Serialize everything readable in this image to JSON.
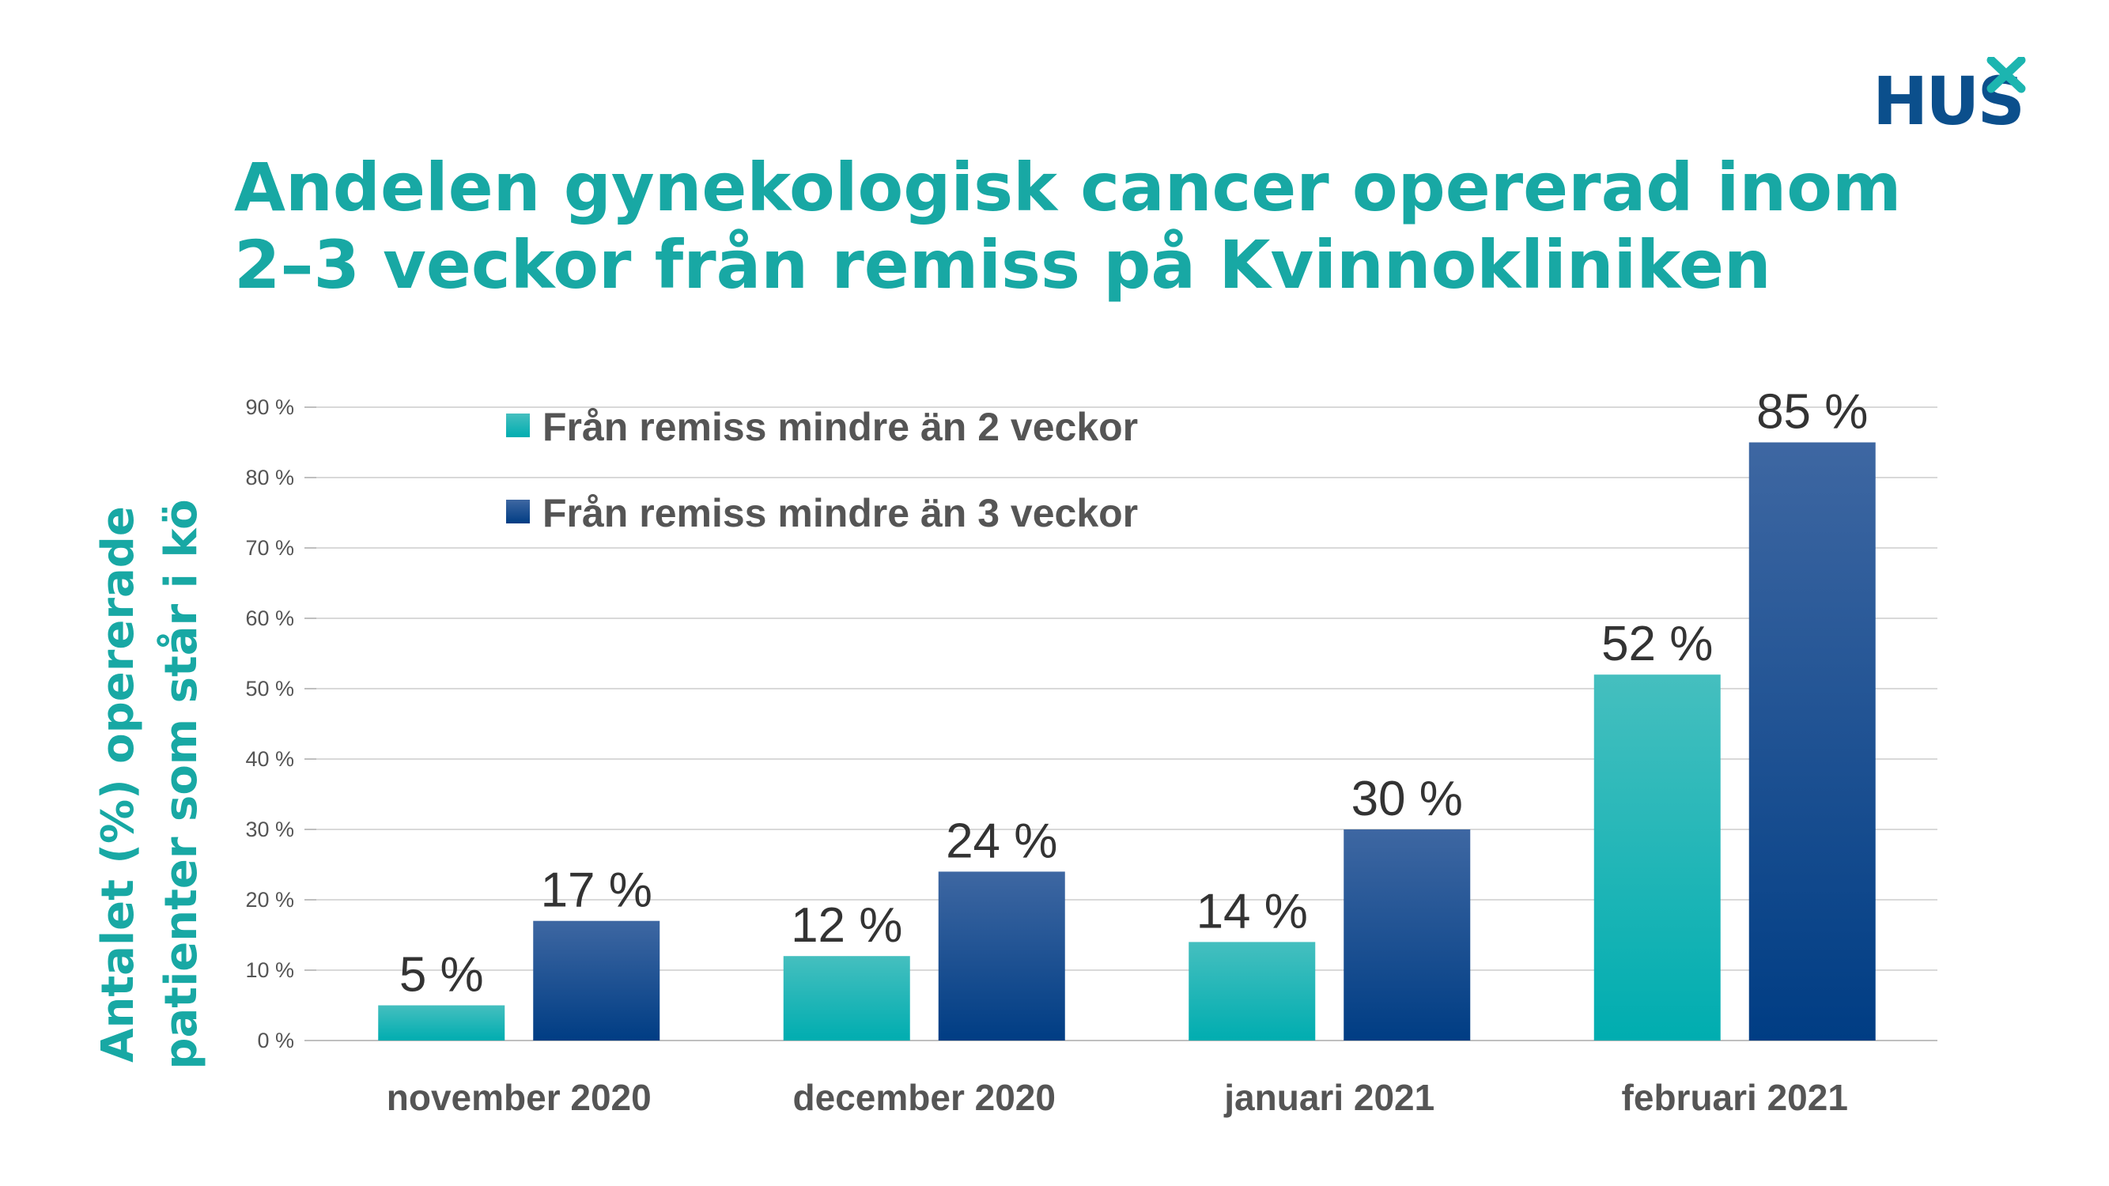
{
  "brand": {
    "logo_text": "HUS",
    "colors": {
      "title": "#18a8a4",
      "logo": "#0b4f8c",
      "cross": "#1cb5b0",
      "axis_text": "#555555",
      "grid": "#d9d9d9"
    }
  },
  "chart_data": {
    "type": "bar",
    "title": [
      "Andelen gynekologisk cancer opererad inom",
      "2–3 veckor från remiss på Kvinnokliniken"
    ],
    "ylabel": [
      "Antalet (%) opererade",
      "patienter som står i kö"
    ],
    "xlabel": "",
    "categories": [
      "november 2020",
      "december 2020",
      "januari 2021",
      "februari 2021"
    ],
    "series": [
      {
        "name": "Från remiss mindre än 2 veckor",
        "values": [
          5,
          12,
          14,
          52
        ],
        "color": "#18b3b0"
      },
      {
        "name": "Från remiss mindre än 3 veckor",
        "values": [
          17,
          24,
          30,
          85
        ],
        "color": "#0d4a8a"
      }
    ],
    "data_labels": [
      [
        "5 %",
        "12 %",
        "14 %",
        "52 %"
      ],
      [
        "17 %",
        "24 %",
        "30 %",
        "85 %"
      ]
    ],
    "ylim": [
      0,
      90
    ],
    "yticks": [
      "0 %",
      "10 %",
      "20 %",
      "30 %",
      "40 %",
      "50 %",
      "60 %",
      "70 %",
      "80 %",
      "90 %"
    ],
    "grid": true,
    "legend_position": "top-left"
  }
}
